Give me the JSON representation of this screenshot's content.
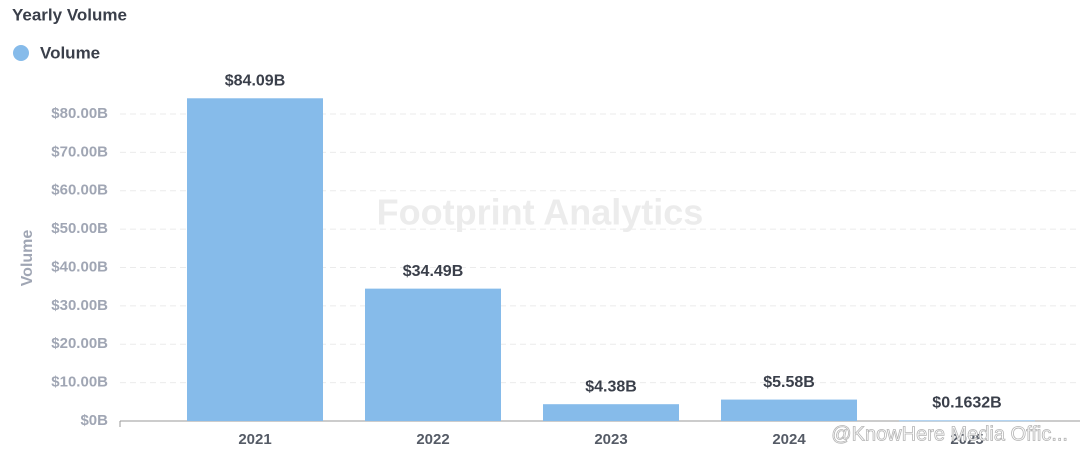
{
  "chart_data": {
    "type": "bar",
    "title": "Yearly Volume",
    "ylabel": "Volume",
    "categories": [
      "2021",
      "2022",
      "2023",
      "2024",
      "2025"
    ],
    "series": [
      {
        "name": "Volume",
        "color": "#86bbea",
        "values": [
          84.09,
          34.49,
          4.38,
          5.58,
          0.1632
        ],
        "value_labels": [
          "$84.09B",
          "$34.49B",
          "$4.38B",
          "$5.58B",
          "$0.1632B"
        ]
      }
    ],
    "ylim": [
      0,
      90
    ],
    "yticks": [
      {
        "value": 0,
        "label": "$0B"
      },
      {
        "value": 10,
        "label": "$10.00B"
      },
      {
        "value": 20,
        "label": "$20.00B"
      },
      {
        "value": 30,
        "label": "$30.00B"
      },
      {
        "value": 40,
        "label": "$40.00B"
      },
      {
        "value": 50,
        "label": "$50.00B"
      },
      {
        "value": 60,
        "label": "$60.00B"
      },
      {
        "value": 70,
        "label": "$70.00B"
      },
      {
        "value": 80,
        "label": "$80.00B"
      }
    ],
    "grid": true,
    "watermark": "Footprint Analytics",
    "credit": "@KnowHere Media Offic..."
  }
}
